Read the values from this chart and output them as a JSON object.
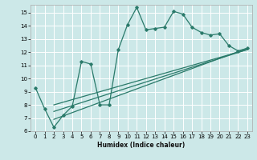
{
  "xlabel": "Humidex (Indice chaleur)",
  "bg_color": "#cce8e8",
  "grid_color": "#ffffff",
  "line_color": "#2a7a6a",
  "xlim": [
    -0.5,
    23.5
  ],
  "ylim": [
    6,
    15.6
  ],
  "xticks": [
    0,
    1,
    2,
    3,
    4,
    5,
    6,
    7,
    8,
    9,
    10,
    11,
    12,
    13,
    14,
    15,
    16,
    17,
    18,
    19,
    20,
    21,
    22,
    23
  ],
  "yticks": [
    6,
    7,
    8,
    9,
    10,
    11,
    12,
    13,
    14,
    15
  ],
  "jagged_x": [
    0,
    1,
    2,
    3,
    4,
    5,
    6,
    7,
    8,
    9,
    10,
    11,
    12,
    13,
    14,
    15,
    16,
    17,
    18,
    19,
    20,
    21,
    22,
    23
  ],
  "jagged_y": [
    9.3,
    7.7,
    6.3,
    7.2,
    7.9,
    11.3,
    11.1,
    8.0,
    8.0,
    12.2,
    14.1,
    15.4,
    13.7,
    13.8,
    13.9,
    15.1,
    14.9,
    13.9,
    13.5,
    13.3,
    13.4,
    12.5,
    12.1,
    12.3
  ],
  "trend1_x": [
    2,
    23
  ],
  "trend1_y": [
    6.9,
    12.3
  ],
  "trend2_x": [
    2,
    23
  ],
  "trend2_y": [
    7.5,
    12.2
  ],
  "trend3_x": [
    2,
    23
  ],
  "trend3_y": [
    8.0,
    12.2
  ]
}
